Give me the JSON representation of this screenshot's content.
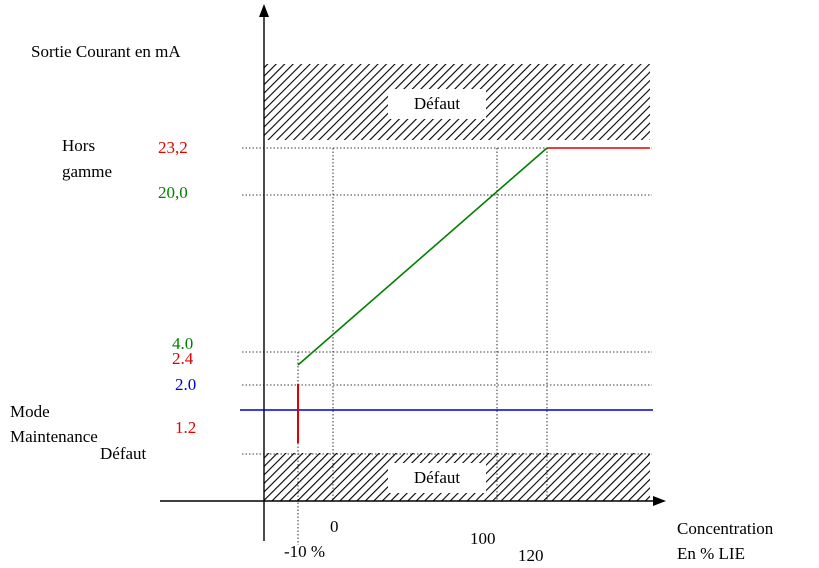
{
  "y_axis_title": "Sortie Courant en mA",
  "x_axis_title_line1": "Concentration",
  "x_axis_title_line2": "En % LIE",
  "labels": {
    "hors_gamme_line1": "Hors",
    "hors_gamme_line2": "gamme",
    "mode_line1": "Mode",
    "mode_line2": "Maintenance",
    "defaut_left": "Défaut",
    "defaut_top_box": "Défaut",
    "defaut_bottom_box": "Défaut"
  },
  "y_ticks": {
    "v23_2": "23,2",
    "v20_0": "20,0",
    "v4_0": "4.0",
    "v2_4": "2.4",
    "v2_0": "2.0",
    "v1_2": "1.2"
  },
  "x_ticks": {
    "m10": "-10 %",
    "zero": "0",
    "hundred": "100",
    "one_twenty": "120"
  },
  "colors": {
    "red": "#e00000",
    "green": "#008000",
    "blue": "#0000cc",
    "axis": "#000000"
  },
  "chart_data": {
    "type": "line",
    "series": [
      {
        "values": [
          [
            -10,
            4.0
          ],
          [
            120,
            23.2
          ]
        ]
      },
      {
        "values": [
          [
            120,
            23.2
          ],
          [
            150,
            23.2
          ]
        ]
      },
      {
        "values": [
          [
            -30,
            1.5
          ],
          [
            150,
            1.5
          ]
        ]
      },
      {
        "values": [
          [
            -10,
            1.2
          ],
          [
            -10,
            2.4
          ]
        ]
      }
    ]
  }
}
